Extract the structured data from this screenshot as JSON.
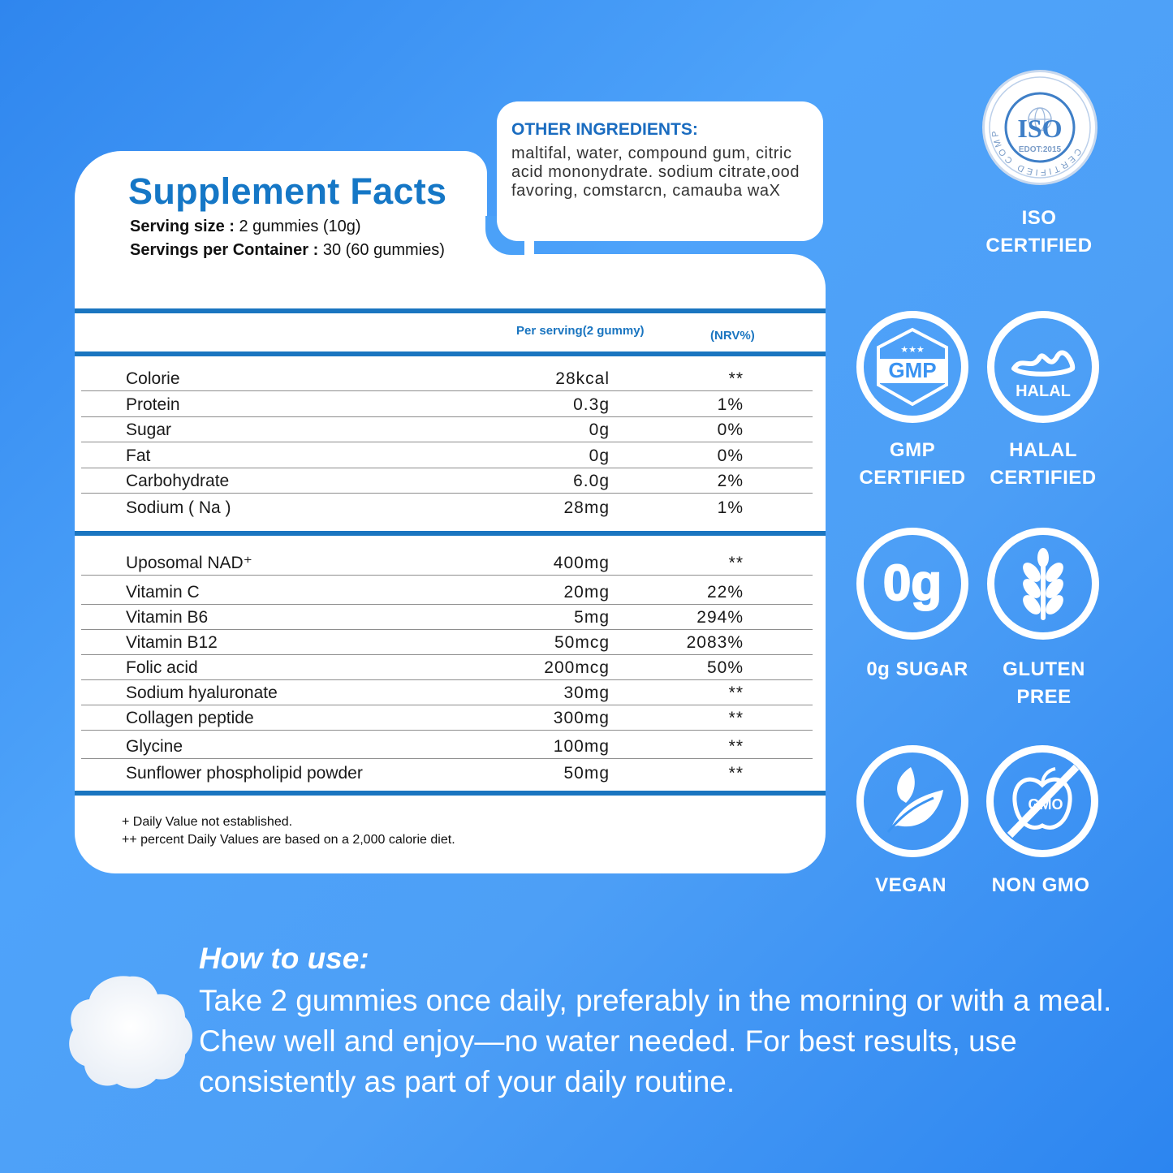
{
  "facts": {
    "title": "Supplement Facts",
    "serving_size_label": "Serving size :",
    "serving_size_value": "2 gummies (10g)",
    "servings_label": "Servings per Container :",
    "servings_value": "30 (60 gummies)",
    "col_per_serving": "Per serving(2 gummy)",
    "col_nrv": "(NRV%)",
    "nutrients": [
      {
        "name": "Colorie",
        "value": "28kcal",
        "pct": "**"
      },
      {
        "name": "Protein",
        "value": "0.3g",
        "pct": "1%"
      },
      {
        "name": "Sugar",
        "value": "0g",
        "pct": "0%"
      },
      {
        "name": "Fat",
        "value": "0g",
        "pct": "0%"
      },
      {
        "name": "Carbohydrate",
        "value": "6.0g",
        "pct": "2%"
      },
      {
        "name": "Sodium ( Na )",
        "value": "28mg",
        "pct": "1%"
      }
    ],
    "actives": [
      {
        "name": "Uposomal NAD⁺",
        "value": "400mg",
        "pct": "**"
      },
      {
        "name": "Vitamin C",
        "value": "20mg",
        "pct": "22%"
      },
      {
        "name": "Vitamin B6",
        "value": "5mg",
        "pct": "294%"
      },
      {
        "name": "Vitamin B12",
        "value": "50mcg",
        "pct": "2083%"
      },
      {
        "name": "Folic acid",
        "value": "200mcg",
        "pct": "50%"
      },
      {
        "name": "Sodium hyaluronate",
        "value": "30mg",
        "pct": "**"
      },
      {
        "name": "Collagen peptide",
        "value": "300mg",
        "pct": "**"
      },
      {
        "name": "Glycine",
        "value": "100mg",
        "pct": "**"
      },
      {
        "name": "Sunflower phospholipid powder",
        "value": "50mg",
        "pct": "**"
      }
    ],
    "note1": "+ Daily Value not established.",
    "note2": "++ percent Daily Values are based on a 2,000 calorie diet."
  },
  "ingredients": {
    "title": "OTHER INGREDIENTS:",
    "text": "maltifal, water, compound gum, citric acid mononydrate. sodium citrate,ood favoring, comstarcn, camauba waX"
  },
  "badges": {
    "iso": {
      "ring_text": "CERTIFIED COMPANY",
      "center": "ISO",
      "sub": "EDOT:2015",
      "label1": "ISO",
      "label2": "CERTIFIED"
    },
    "gmp": {
      "center": "GMP",
      "label1": "GMP",
      "label2": "CERTIFIED"
    },
    "halal": {
      "center": "HALAL",
      "label1": "HALAL",
      "label2": "CERTIFIED"
    },
    "sugar": {
      "center": "0g",
      "label1": "0g SUGAR"
    },
    "gluten": {
      "label1": "GLUTEN",
      "label2": "PREE"
    },
    "vegan": {
      "label1": "VEGAN"
    },
    "nongmo": {
      "center": "GMO",
      "label1": "NON GMO"
    }
  },
  "howto": {
    "title": "How to use:",
    "text": "Take 2 gummies once daily, preferably in the morning or with a meal. Chew well and enjoy—no water needed. For best results, use consistently as part of your daily routine."
  },
  "colors": {
    "accent": "#1a75c0",
    "background": "#4ba1f8"
  }
}
